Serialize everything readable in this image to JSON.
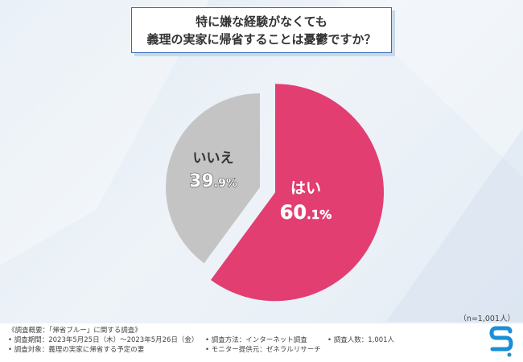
{
  "title": {
    "line1": "特に嫌な経験がなくても",
    "line2": "義理の実家に帰省することは憂鬱ですか？"
  },
  "chart_data": {
    "type": "pie",
    "slices": [
      {
        "label": "はい",
        "value": 60.1,
        "display_int": "60",
        "display_dec": ".1%",
        "color": "#e23e72"
      },
      {
        "label": "いいえ",
        "value": 39.9,
        "display_int": "39",
        "display_dec": ".9%",
        "color": "#c4c4c4"
      }
    ],
    "start": "12 o'clock, clockwise",
    "exploded": "はい"
  },
  "sample_size": "（n=1,001人）",
  "footer": {
    "overview": "《調査概要：「帰省ブルー」に関する調査》",
    "period": "• 調査期間：2023年5月25日（木）～2023年5月26日（金）",
    "method": "• 調査方法：インターネット調査",
    "respondents": "• 調査人数：1,001人",
    "target": "• 調査対象：義理の実家に帰省する予定の妻",
    "provider": "• モニター提供元：ゼネラルリサーチ"
  },
  "colors": {
    "accent": "#2f6db5",
    "logo": "#1a8fd6"
  }
}
